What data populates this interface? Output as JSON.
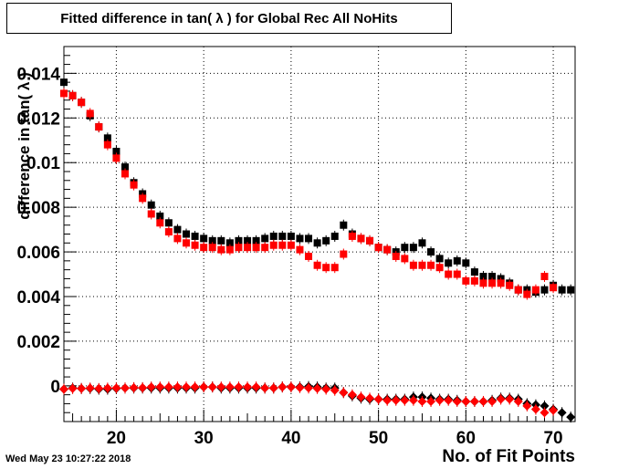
{
  "chart_data": {
    "type": "scatter",
    "title": "Fitted difference in tan( λ ) for Global Rec All NoHits",
    "xlabel": "No. of Fit Points",
    "ylabel": "difference in tan( λ )",
    "xlim": [
      14,
      72.5
    ],
    "ylim": [
      -0.0016,
      0.0152
    ],
    "x_ticks": [
      20,
      30,
      40,
      50,
      60,
      70
    ],
    "y_ticks": [
      0,
      0.002,
      0.004,
      0.006,
      0.008,
      0.01,
      0.012,
      0.014
    ],
    "y_tick_labels": [
      "0",
      "0.002",
      "0.004",
      "0.006",
      "0.008",
      "0.01",
      "0.012",
      "0.014"
    ],
    "grid": true,
    "legend": "none",
    "series": [
      {
        "marker": "square",
        "color": "#000000",
        "x": [
          14,
          15,
          16,
          17,
          18,
          19,
          20,
          21,
          22,
          23,
          24,
          25,
          26,
          27,
          28,
          29,
          30,
          31,
          32,
          33,
          34,
          35,
          36,
          37,
          38,
          39,
          40,
          41,
          42,
          43,
          44,
          45,
          46,
          47,
          48,
          49,
          50,
          51,
          52,
          53,
          54,
          55,
          56,
          57,
          58,
          59,
          60,
          61,
          62,
          63,
          64,
          65,
          66,
          67,
          68,
          69,
          70,
          71,
          72
        ],
        "y": [
          0.0136,
          0.013,
          0.0127,
          0.0121,
          0.0116,
          0.0111,
          0.0105,
          0.0098,
          0.0091,
          0.0086,
          0.0081,
          0.0076,
          0.0073,
          0.007,
          0.0068,
          0.0067,
          0.0066,
          0.0065,
          0.0065,
          0.0064,
          0.0065,
          0.0065,
          0.0065,
          0.0066,
          0.0067,
          0.0067,
          0.0067,
          0.0066,
          0.0066,
          0.0064,
          0.0065,
          0.0067,
          0.0072,
          0.0068,
          0.0066,
          0.0065,
          0.0062,
          0.0061,
          0.006,
          0.0062,
          0.0062,
          0.0064,
          0.006,
          0.0057,
          0.0055,
          0.0056,
          0.0055,
          0.0051,
          0.0049,
          0.0049,
          0.0048,
          0.0046,
          0.0043,
          0.0043,
          0.0042,
          0.0043,
          0.0045,
          0.0043,
          0.0043
        ]
      },
      {
        "marker": "square",
        "color": "#ff0000",
        "x": [
          14,
          15,
          16,
          17,
          18,
          19,
          20,
          21,
          22,
          23,
          24,
          25,
          26,
          27,
          28,
          29,
          30,
          31,
          32,
          33,
          34,
          35,
          36,
          37,
          38,
          39,
          40,
          41,
          42,
          43,
          44,
          45,
          46,
          47,
          48,
          49,
          50,
          51,
          52,
          53,
          54,
          55,
          56,
          57,
          58,
          59,
          60,
          61,
          62,
          63,
          64,
          65,
          66,
          67,
          68,
          69,
          70
        ],
        "y": [
          0.0131,
          0.013,
          0.0127,
          0.0122,
          0.0116,
          0.0108,
          0.0102,
          0.0095,
          0.009,
          0.0084,
          0.0077,
          0.0073,
          0.0069,
          0.0066,
          0.0064,
          0.0063,
          0.0062,
          0.0062,
          0.0061,
          0.0061,
          0.0062,
          0.0062,
          0.0062,
          0.0062,
          0.0063,
          0.0063,
          0.0063,
          0.0061,
          0.0058,
          0.0054,
          0.0053,
          0.0053,
          0.0059,
          0.0067,
          0.0066,
          0.0065,
          0.0062,
          0.0061,
          0.0058,
          0.0057,
          0.0054,
          0.0054,
          0.0054,
          0.0053,
          0.005,
          0.005,
          0.0047,
          0.0047,
          0.0046,
          0.0046,
          0.0046,
          0.0045,
          0.0043,
          0.0041,
          0.0043,
          0.0049,
          0.0044
        ]
      },
      {
        "marker": "diamond",
        "color": "#000000",
        "x": [
          14,
          15,
          16,
          17,
          18,
          19,
          20,
          21,
          22,
          23,
          24,
          25,
          26,
          27,
          28,
          29,
          30,
          31,
          32,
          33,
          34,
          35,
          36,
          37,
          38,
          39,
          40,
          41,
          42,
          43,
          44,
          45,
          46,
          47,
          48,
          49,
          50,
          51,
          52,
          53,
          54,
          55,
          56,
          57,
          58,
          59,
          60,
          61,
          62,
          63,
          64,
          65,
          66,
          67,
          68,
          69,
          70,
          71,
          72
        ],
        "y": [
          -0.00015,
          -0.0001,
          -0.00012,
          -0.00012,
          -0.00015,
          -0.00015,
          -0.00012,
          -0.0001,
          -0.0001,
          -0.0001,
          -0.0001,
          -0.0001,
          -0.0001,
          -0.0001,
          -0.0001,
          -0.0001,
          -5e-05,
          -5e-05,
          -0.0001,
          -0.0001,
          -0.0001,
          -0.0001,
          -0.0001,
          -0.0001,
          -0.0001,
          -5e-05,
          -5e-05,
          -5e-05,
          -3e-05,
          -5e-05,
          -0.0001,
          -0.0001,
          -0.0003,
          -0.00045,
          -0.00055,
          -0.0006,
          -0.0006,
          -0.0006,
          -0.0006,
          -0.0006,
          -0.0005,
          -0.0005,
          -0.00055,
          -0.0006,
          -0.0006,
          -0.00065,
          -0.0007,
          -0.0007,
          -0.0007,
          -0.00065,
          -0.00055,
          -0.00055,
          -0.0006,
          -0.0008,
          -0.00085,
          -0.0009,
          -0.00105,
          -0.0012,
          -0.0014
        ]
      },
      {
        "marker": "diamond",
        "color": "#ff0000",
        "x": [
          14,
          15,
          16,
          17,
          18,
          19,
          20,
          21,
          22,
          23,
          24,
          25,
          26,
          27,
          28,
          29,
          30,
          31,
          32,
          33,
          34,
          35,
          36,
          37,
          38,
          39,
          40,
          41,
          42,
          43,
          44,
          45,
          46,
          47,
          48,
          49,
          50,
          51,
          52,
          53,
          54,
          55,
          56,
          57,
          58,
          59,
          60,
          61,
          62,
          63,
          64,
          65,
          66,
          67,
          68,
          69,
          70
        ],
        "y": [
          -0.00015,
          -0.00012,
          -0.00012,
          -0.0001,
          -0.00012,
          -0.0001,
          -0.0001,
          -0.0001,
          -8e-05,
          -8e-05,
          -5e-05,
          -5e-05,
          -5e-05,
          -5e-05,
          -5e-05,
          -5e-05,
          -5e-05,
          -5e-05,
          -5e-05,
          -5e-05,
          -5e-05,
          -5e-05,
          -5e-05,
          -0.0001,
          -0.0001,
          -5e-05,
          -5e-05,
          -8e-05,
          -0.0001,
          -0.00012,
          -0.00015,
          -0.0002,
          -0.0003,
          -0.0004,
          -0.0005,
          -0.00055,
          -0.0006,
          -0.00065,
          -0.00065,
          -0.00065,
          -0.00065,
          -0.0007,
          -0.0007,
          -0.00065,
          -0.00065,
          -0.0007,
          -0.0007,
          -0.0007,
          -0.0007,
          -0.0007,
          -0.0006,
          -0.0006,
          -0.0007,
          -0.0009,
          -0.00105,
          -0.0012,
          -0.0011
        ]
      }
    ]
  },
  "timestamp": "Wed May 23 10:27:22 2018"
}
